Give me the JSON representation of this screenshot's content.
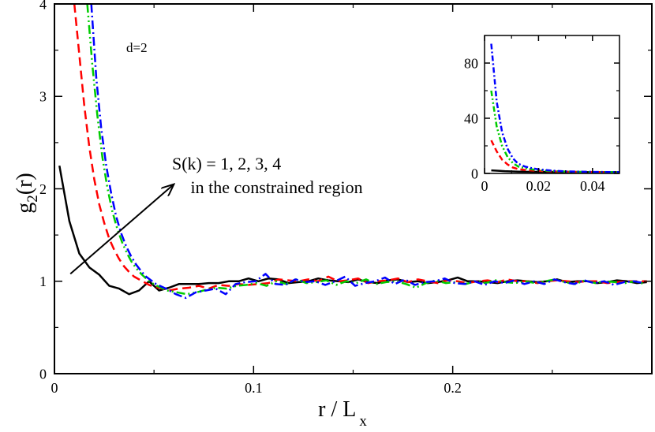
{
  "chart_data": [
    {
      "type": "line",
      "xlabel_main": "r / L",
      "xlabel_sub": "x",
      "ylabel_main": "g",
      "ylabel_sub": "2",
      "ylabel_tail": "(r)",
      "xlim": [
        0,
        0.3
      ],
      "ylim": [
        0,
        4
      ],
      "xticks": [
        0,
        0.1,
        0.2
      ],
      "xtick_labels": [
        "0",
        "0.1",
        "0.2"
      ],
      "yticks": [
        0,
        1,
        2,
        3,
        4
      ],
      "ytick_labels": [
        "0",
        "1",
        "2",
        "3",
        "4"
      ],
      "grid": false,
      "annotations": {
        "dimension": "d=2",
        "arrow_text_line1": "S(k) = 1, 2, 3, 4",
        "arrow_text_line2": " in the constrained region",
        "arrow_from": [
          0.008,
          1.08
        ],
        "arrow_to": [
          0.06,
          2.05
        ]
      },
      "series": [
        {
          "color": "#000000",
          "dash": "",
          "x": [
            0.0025,
            0.0075,
            0.0125,
            0.0175,
            0.0225,
            0.0275,
            0.0325,
            0.0375,
            0.0425,
            0.0475,
            0.0525,
            0.0575,
            0.0625,
            0.0675,
            0.0725,
            0.0775,
            0.0825,
            0.0875,
            0.0925,
            0.0975,
            0.1025,
            0.1075,
            0.1125,
            0.1175,
            0.1225,
            0.1275,
            0.1325,
            0.1375,
            0.1425,
            0.1475,
            0.1525,
            0.1575,
            0.1625,
            0.1675,
            0.1725,
            0.1775,
            0.1825,
            0.1875,
            0.1925,
            0.1975,
            0.2025,
            0.2075,
            0.2125,
            0.2175,
            0.2225,
            0.2275,
            0.2325,
            0.2375,
            0.2425,
            0.2475,
            0.2525,
            0.2575,
            0.2625,
            0.2675,
            0.2725,
            0.2775,
            0.2825,
            0.2875,
            0.2925,
            0.2975
          ],
          "y": [
            2.25,
            1.65,
            1.3,
            1.15,
            1.07,
            0.95,
            0.92,
            0.86,
            0.9,
            1.0,
            0.9,
            0.93,
            0.97,
            0.97,
            0.97,
            0.98,
            0.98,
            1.0,
            1.0,
            1.03,
            1.0,
            1.03,
            1.02,
            0.98,
            0.99,
            1.0,
            1.03,
            1.01,
            1.0,
            0.99,
            1.02,
            0.99,
            0.98,
            1.01,
            1.02,
            0.99,
            1.0,
            0.98,
            0.99,
            1.01,
            1.04,
            1.0,
            1.0,
            0.99,
            0.98,
            1.0,
            1.01,
            1.0,
            0.99,
            1.0,
            1.02,
            0.99,
            1.0,
            1.0,
            0.98,
            0.99,
            1.01,
            1.0,
            0.98,
            0.99
          ]
        },
        {
          "color": "#ff0000",
          "dash": "11 6",
          "x": [
            0.01,
            0.0125,
            0.015,
            0.0175,
            0.02,
            0.0225,
            0.025,
            0.0275,
            0.03,
            0.0325,
            0.035,
            0.0375,
            0.04,
            0.0425,
            0.045,
            0.0475,
            0.05,
            0.0525,
            0.0575,
            0.0625,
            0.0675,
            0.0725,
            0.0775,
            0.0825,
            0.0875,
            0.0925,
            0.0975,
            0.1025,
            0.1075,
            0.1125,
            0.1175,
            0.1225,
            0.1275,
            0.1325,
            0.1375,
            0.1425,
            0.1475,
            0.1525,
            0.1575,
            0.1625,
            0.1675,
            0.1725,
            0.1775,
            0.1825,
            0.1875,
            0.1925,
            0.1975,
            0.2025,
            0.2075,
            0.2125,
            0.2175,
            0.2225,
            0.2275,
            0.2325,
            0.2375,
            0.2425,
            0.2475,
            0.2525,
            0.2575,
            0.2625,
            0.2675,
            0.2725,
            0.2775,
            0.2825,
            0.2875,
            0.2925,
            0.2975
          ],
          "y": [
            4.0,
            3.45,
            2.9,
            2.45,
            2.1,
            1.83,
            1.63,
            1.46,
            1.34,
            1.24,
            1.16,
            1.1,
            1.05,
            1.02,
            0.99,
            0.96,
            0.94,
            0.93,
            0.9,
            0.92,
            0.93,
            0.95,
            0.92,
            0.96,
            0.95,
            0.97,
            0.96,
            0.97,
            0.98,
            1.02,
            1.01,
            1.0,
            1.02,
            1.0,
            1.05,
            1.0,
            1.01,
            1.03,
            0.98,
            1.0,
            1.01,
            1.03,
            0.99,
            1.02,
            1.0,
            0.98,
            1.01,
            1.0,
            0.98,
            1.0,
            1.01,
            0.99,
            1.02,
            1.0,
            1.0,
            0.98,
            1.0,
            1.01,
            1.0,
            0.99,
            1.0,
            1.0,
            0.98,
            0.99,
            1.0,
            1.0,
            1.0
          ]
        },
        {
          "color": "#00cc00",
          "dash": "11 4 2 4 2 4",
          "x": [
            0.0165,
            0.019,
            0.0215,
            0.024,
            0.0265,
            0.029,
            0.0315,
            0.034,
            0.0365,
            0.039,
            0.0415,
            0.044,
            0.0465,
            0.049,
            0.0515,
            0.0565,
            0.0615,
            0.0665,
            0.0715,
            0.0765,
            0.0815,
            0.0865,
            0.0915,
            0.0965,
            0.1015,
            0.1065,
            0.1115,
            0.1165,
            0.1215,
            0.1265,
            0.1315,
            0.1365,
            0.1415,
            0.1465,
            0.1515,
            0.1565,
            0.1615,
            0.1665,
            0.1715,
            0.1765,
            0.1815,
            0.1865,
            0.1915,
            0.1965,
            0.2015,
            0.2065,
            0.2115,
            0.2165,
            0.2215,
            0.2265,
            0.2315,
            0.2365,
            0.2415,
            0.2465,
            0.2515,
            0.2565,
            0.2615,
            0.2665,
            0.2715,
            0.2765,
            0.2815,
            0.2865,
            0.2915,
            0.2965
          ],
          "y": [
            4.0,
            3.35,
            2.8,
            2.35,
            2.02,
            1.76,
            1.57,
            1.42,
            1.3,
            1.2,
            1.13,
            1.07,
            1.02,
            0.98,
            0.95,
            0.9,
            0.88,
            0.86,
            0.88,
            0.91,
            0.93,
            0.92,
            0.95,
            0.96,
            0.98,
            0.95,
            1.0,
            0.97,
            1.02,
            0.98,
            0.99,
            1.01,
            0.96,
            1.0,
            0.98,
            1.02,
            0.97,
            0.99,
            1.0,
            0.97,
            0.93,
            0.98,
            1.01,
            0.98,
            0.99,
            0.97,
            1.0,
            0.98,
            1.01,
            0.99,
            0.98,
            1.0,
            0.98,
            1.0,
            1.02,
            0.99,
            0.97,
            1.01,
            0.98,
            1.0,
            0.99,
            0.98,
            1.0,
            0.97
          ]
        },
        {
          "color": "#0000ff",
          "dash": "11 4 2 4",
          "x": [
            0.0185,
            0.021,
            0.0235,
            0.026,
            0.0285,
            0.031,
            0.0335,
            0.036,
            0.0385,
            0.041,
            0.0435,
            0.046,
            0.0485,
            0.051,
            0.056,
            0.061,
            0.066,
            0.071,
            0.076,
            0.081,
            0.086,
            0.091,
            0.096,
            0.101,
            0.106,
            0.111,
            0.116,
            0.121,
            0.126,
            0.131,
            0.136,
            0.141,
            0.146,
            0.151,
            0.156,
            0.161,
            0.166,
            0.171,
            0.176,
            0.181,
            0.186,
            0.191,
            0.196,
            0.201,
            0.206,
            0.211,
            0.216,
            0.221,
            0.226,
            0.231,
            0.236,
            0.241,
            0.246,
            0.251,
            0.256,
            0.261,
            0.266,
            0.271,
            0.276,
            0.281,
            0.286,
            0.291,
            0.296
          ],
          "y": [
            4.0,
            3.2,
            2.65,
            2.25,
            1.95,
            1.7,
            1.52,
            1.38,
            1.27,
            1.18,
            1.11,
            1.05,
            1.01,
            0.97,
            0.92,
            0.86,
            0.82,
            0.88,
            0.9,
            0.92,
            0.86,
            0.97,
            0.99,
            1.0,
            1.08,
            0.97,
            0.96,
            1.02,
            0.99,
            1.0,
            0.96,
            1.0,
            1.05,
            0.95,
            0.98,
            1.0,
            1.04,
            0.97,
            1.02,
            0.96,
            0.99,
            1.0,
            1.03,
            0.98,
            0.97,
            1.0,
            0.96,
            1.0,
            0.98,
            1.01,
            0.97,
            1.0,
            0.97,
            1.02,
            0.99,
            0.97,
            1.01,
            0.98,
            1.0,
            0.96,
            0.99,
            1.0,
            0.98
          ]
        }
      ]
    },
    {
      "type": "line",
      "xlim": [
        0,
        0.05
      ],
      "ylim": [
        0,
        100
      ],
      "xticks": [
        0,
        0.02,
        0.04
      ],
      "xtick_labels": [
        "0",
        "0.02",
        "0.04"
      ],
      "yticks": [
        0,
        40,
        80
      ],
      "ytick_labels": [
        "0",
        "40",
        "80"
      ],
      "grid": false,
      "series": [
        {
          "color": "#000000",
          "dash": "",
          "x": [
            0.0025,
            0.0075,
            0.0125,
            0.0175,
            0.0225,
            0.03,
            0.04,
            0.05
          ],
          "y": [
            2.25,
            1.65,
            1.3,
            1.15,
            1.07,
            0.95,
            0.9,
            1.0
          ]
        },
        {
          "color": "#ff0000",
          "dash": "7 4",
          "x": [
            0.0025,
            0.0045,
            0.0065,
            0.0085,
            0.0105,
            0.0125,
            0.015,
            0.0175,
            0.02,
            0.025,
            0.03,
            0.04,
            0.05
          ],
          "y": [
            24,
            16,
            10,
            6.5,
            4.3,
            3.1,
            2.5,
            2.2,
            1.9,
            1.5,
            1.25,
            1.05,
            0.95
          ]
        },
        {
          "color": "#00cc00",
          "dash": "7 3 2 3 2 3",
          "x": [
            0.0025,
            0.0045,
            0.0065,
            0.0085,
            0.0105,
            0.0125,
            0.015,
            0.0175,
            0.02,
            0.025,
            0.03,
            0.04,
            0.05
          ],
          "y": [
            60,
            34,
            20,
            12,
            7.5,
            5,
            3.8,
            3,
            2.4,
            1.7,
            1.35,
            1.05,
            0.95
          ]
        },
        {
          "color": "#0000ff",
          "dash": "7 3 2 3",
          "x": [
            0.0025,
            0.0045,
            0.0065,
            0.0085,
            0.0105,
            0.0125,
            0.015,
            0.0175,
            0.02,
            0.025,
            0.03,
            0.04,
            0.05
          ],
          "y": [
            94,
            52,
            30,
            18,
            11,
            7,
            5,
            3.8,
            3,
            2,
            1.5,
            1.1,
            0.97
          ]
        }
      ]
    }
  ]
}
